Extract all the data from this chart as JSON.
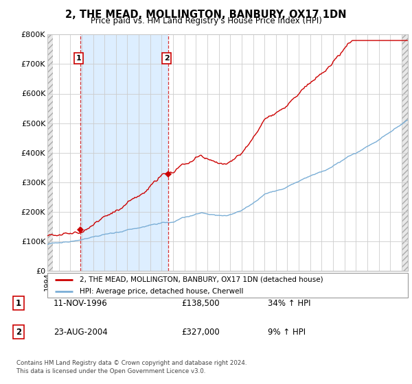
{
  "title": "2, THE MEAD, MOLLINGTON, BANBURY, OX17 1DN",
  "subtitle": "Price paid vs. HM Land Registry's House Price Index (HPI)",
  "ylabel_ticks": [
    "£0",
    "£100K",
    "£200K",
    "£300K",
    "£400K",
    "£500K",
    "£600K",
    "£700K",
    "£800K"
  ],
  "ytick_vals": [
    0,
    100000,
    200000,
    300000,
    400000,
    500000,
    600000,
    700000,
    800000
  ],
  "ylim": [
    0,
    800000
  ],
  "xlim_start": 1994.0,
  "xlim_end": 2025.5,
  "purchase1_date": 1996.87,
  "purchase1_price": 138500,
  "purchase1_label": "1",
  "purchase2_date": 2004.58,
  "purchase2_price": 327000,
  "purchase2_label": "2",
  "line_color_property": "#cc0000",
  "line_color_hpi": "#7aaed6",
  "shade_color": "#ddeeff",
  "legend_property": "2, THE MEAD, MOLLINGTON, BANBURY, OX17 1DN (detached house)",
  "legend_hpi": "HPI: Average price, detached house, Cherwell",
  "table_rows": [
    {
      "label": "1",
      "date": "11-NOV-1996",
      "price": "£138,500",
      "hpi": "34% ↑ HPI"
    },
    {
      "label": "2",
      "date": "23-AUG-2004",
      "price": "£327,000",
      "hpi": "9% ↑ HPI"
    }
  ],
  "footer": "Contains HM Land Registry data © Crown copyright and database right 2024.\nThis data is licensed under the Open Government Licence v3.0.",
  "background_color": "#ffffff",
  "grid_color": "#cccccc"
}
